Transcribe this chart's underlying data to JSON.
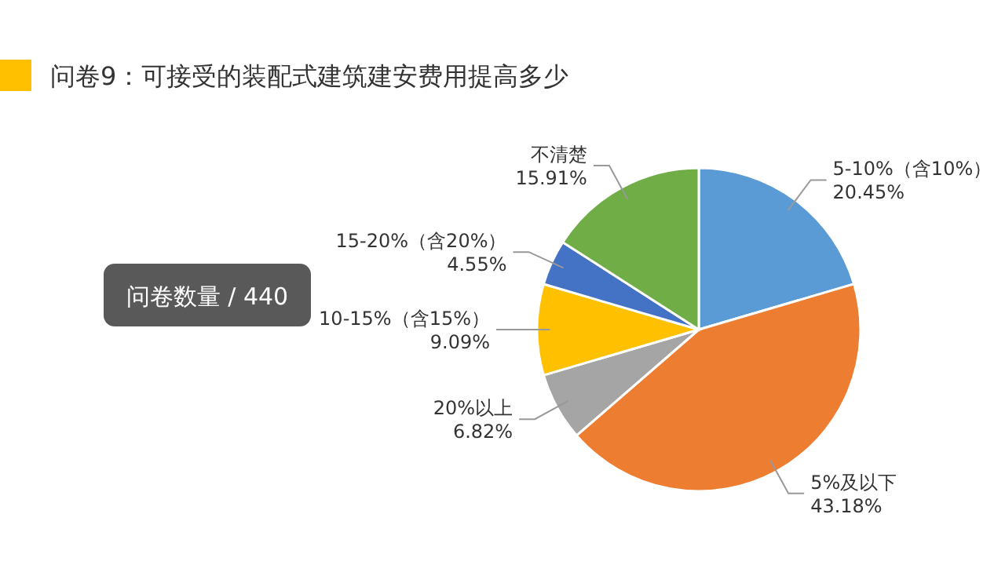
{
  "chart_data": {
    "type": "pie",
    "title": "问卷9：可接受的装配式建筑建安费用提高多少",
    "categories": [
      "5-10%（含10%）",
      "5%及以下",
      "20%以上",
      "10-15%（含15%）",
      "15-20%（含20%）",
      "不清楚"
    ],
    "values": [
      20.45,
      43.18,
      6.82,
      9.09,
      4.55,
      15.91
    ],
    "colors": [
      "#5b9bd5",
      "#ed7d31",
      "#a5a5a5",
      "#ffc000",
      "#4472c4",
      "#70ad47"
    ],
    "value_labels": [
      "20.45%",
      "43.18%",
      "6.82%",
      "9.09%",
      "4.55%",
      "15.91%"
    ],
    "annotations": [
      "问卷数量 / 440"
    ]
  }
}
